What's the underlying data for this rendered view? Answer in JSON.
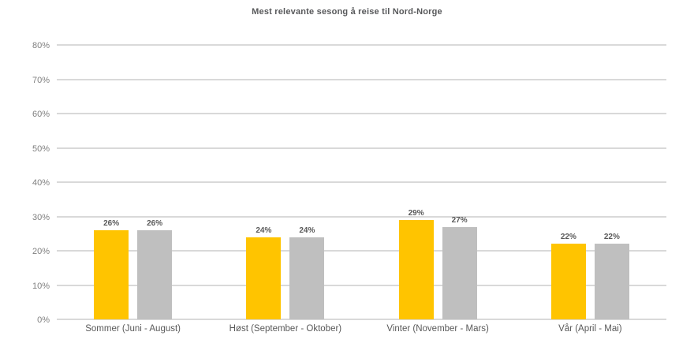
{
  "title": "Mest relevante sesong å reise til Nord-Norge",
  "colors": {
    "bar_yellow": "#ffc400",
    "bar_gray": "#bfbfbf",
    "gridline": "#d9d9d9",
    "tick_text": "#7f7f7f",
    "label_text": "#595959",
    "title_text": "#58595b",
    "background": "#ffffff"
  },
  "chart_data": {
    "type": "bar",
    "title": "Mest relevante sesong å reise til Nord-Norge",
    "categories": [
      "Sommer (Juni - August)",
      "Høst (September - Oktober)",
      "Vinter (November - Mars)",
      "Vår (April - Mai)"
    ],
    "series": [
      {
        "name": "yellow-series",
        "color": "#ffc400",
        "values": [
          26,
          24,
          29,
          22
        ],
        "labels": [
          "26%",
          "24%",
          "29%",
          "22%"
        ]
      },
      {
        "name": "gray-series",
        "color": "#bfbfbf",
        "values": [
          26,
          24,
          27,
          22
        ],
        "labels": [
          "26%",
          "24%",
          "27%",
          "22%"
        ]
      }
    ],
    "xlabel": "",
    "ylabel": "",
    "ylim": [
      0,
      80
    ],
    "ytick_step": 10,
    "yticks": [
      "0%",
      "10%",
      "20%",
      "30%",
      "40%",
      "50%",
      "60%",
      "70%",
      "80%"
    ],
    "grid": true,
    "legend_position": "none"
  }
}
